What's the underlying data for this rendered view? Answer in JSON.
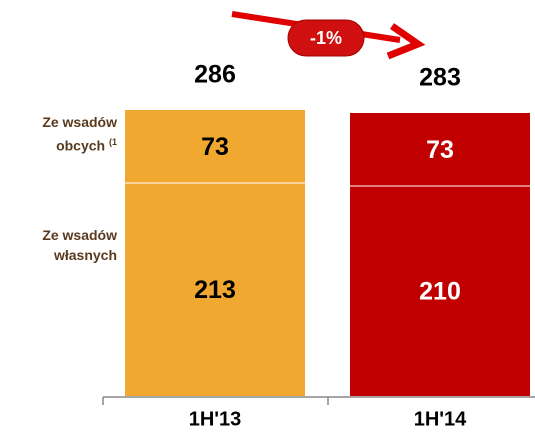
{
  "chart_data": {
    "type": "stacked_bar",
    "categories": [
      "1H'13",
      "1H'14"
    ],
    "colors": [
      "#f0a830",
      "#c00000"
    ],
    "series": [
      {
        "name": "Ze wsadów własnych",
        "values": [
          213,
          210
        ]
      },
      {
        "name": "Ze wsadów obcych",
        "note": "(1",
        "values": [
          73,
          73
        ]
      }
    ],
    "totals": [
      286,
      283
    ],
    "annotation": "-1%"
  }
}
